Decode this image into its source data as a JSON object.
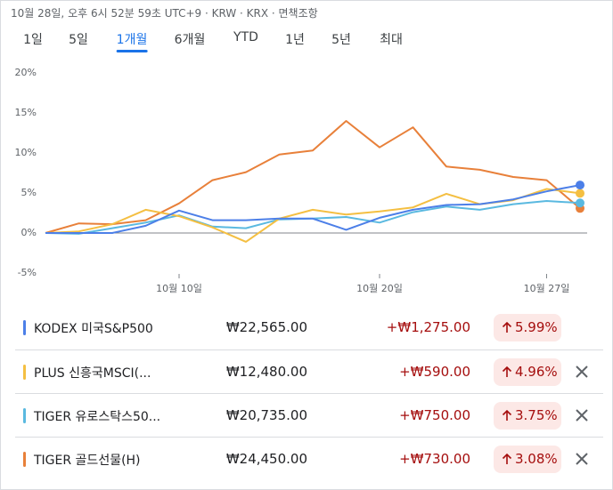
{
  "header": {
    "timestamp": "10월 28일, 오후 6시 52분 59초 UTC+9 · KRW · KRX · 면책조항"
  },
  "tabs": {
    "items": [
      "1일",
      "5일",
      "1개월",
      "6개월",
      "YTD",
      "1년",
      "5년",
      "최대"
    ],
    "selected": 2
  },
  "chart_data": {
    "type": "line",
    "categories": [
      null,
      null,
      null,
      null,
      "10월 10일",
      null,
      null,
      null,
      null,
      null,
      "10월 20일",
      null,
      null,
      null,
      null,
      "10월 27일",
      null
    ],
    "ylim": [
      -6,
      21
    ],
    "yticks": [
      {
        "value": -5,
        "label": "-5%"
      },
      {
        "value": 0,
        "label": "0%"
      },
      {
        "value": 5,
        "label": "5%"
      },
      {
        "value": 10,
        "label": "10%"
      },
      {
        "value": 15,
        "label": "15%"
      },
      {
        "value": 20,
        "label": "20%"
      }
    ],
    "grid": false,
    "series": [
      {
        "name": "KODEX 미국S&P500",
        "color": "#4c7fe8",
        "values": [
          0,
          0,
          0,
          0.9,
          2.8,
          1.6,
          1.6,
          1.8,
          1.8,
          0.4,
          1.9,
          2.9,
          3.5,
          3.6,
          4.2,
          5.2,
          5.99
        ]
      },
      {
        "name": "PLUS 신흥국MSCI(...",
        "color": "#f4bf42",
        "values": [
          0,
          0.2,
          1.1,
          2.9,
          2.1,
          0.7,
          -1.1,
          1.8,
          2.9,
          2.3,
          2.7,
          3.2,
          4.9,
          3.6,
          4.1,
          5.5,
          4.96
        ]
      },
      {
        "name": "TIGER 유로스탁스50...",
        "color": "#5ab9e0",
        "values": [
          0,
          -0.1,
          0.6,
          1.3,
          2.2,
          0.8,
          0.6,
          1.7,
          1.8,
          2.0,
          1.3,
          2.6,
          3.3,
          2.9,
          3.6,
          4.0,
          3.75
        ]
      },
      {
        "name": "TIGER 골드선물(H)",
        "color": "#e8803a",
        "values": [
          0,
          1.2,
          1.1,
          1.6,
          3.7,
          6.6,
          7.6,
          9.8,
          10.3,
          14.0,
          10.7,
          13.2,
          8.3,
          7.9,
          7.0,
          6.6,
          3.08
        ]
      }
    ]
  },
  "rows": [
    {
      "price": "₩22,565.00",
      "change": "+₩1,275.00",
      "change_pct": "5.99%"
    },
    {
      "price": "₩12,480.00",
      "change": "+₩590.00",
      "change_pct": "4.96%"
    },
    {
      "price": "₩20,735.00",
      "change": "+₩750.00",
      "change_pct": "3.75%"
    },
    {
      "price": "₩24,450.00",
      "change": "+₩730.00",
      "change_pct": "3.08%"
    }
  ]
}
